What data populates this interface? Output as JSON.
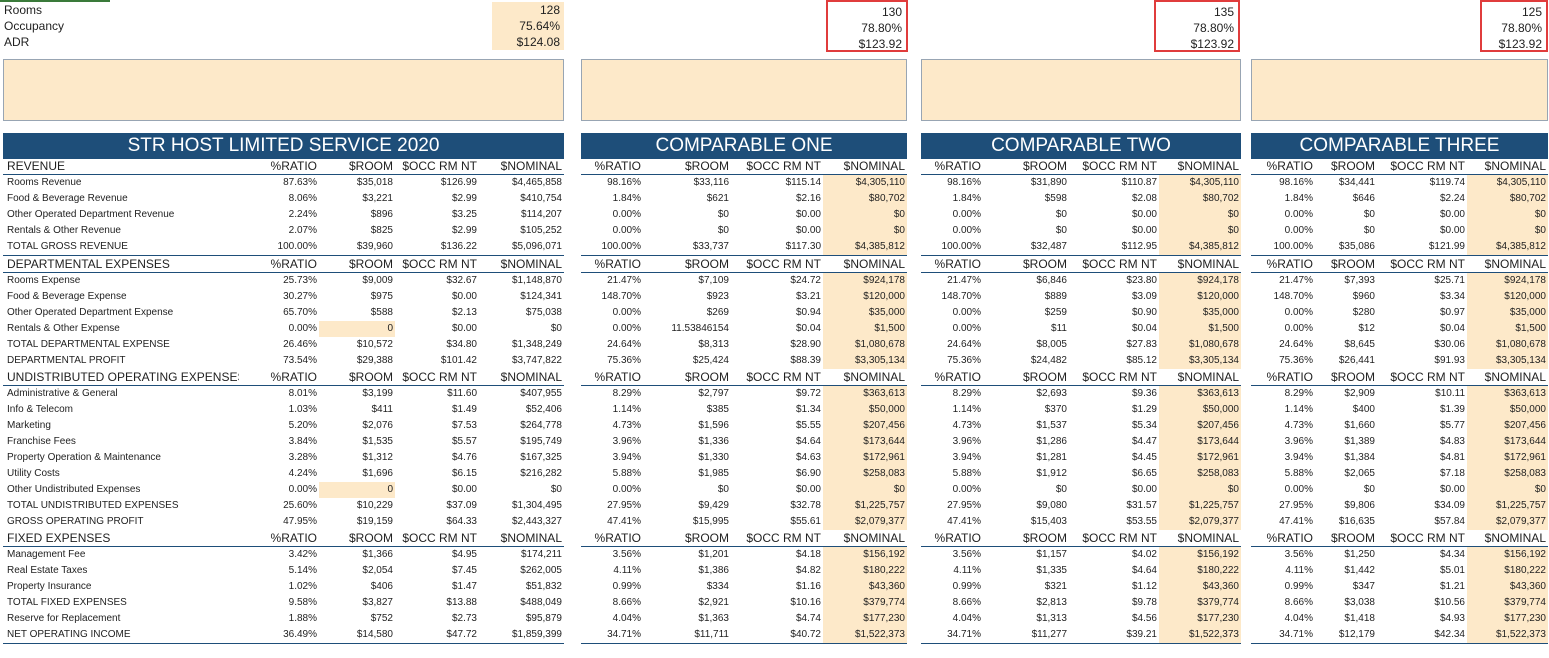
{
  "top_labels": [
    "Rooms",
    "Occupancy",
    "ADR"
  ],
  "top_panels": [
    {
      "rooms": "128",
      "occupancy": "75.64%",
      "adr": "$124.08"
    },
    {
      "rooms": "130",
      "occupancy": "78.80%",
      "adr": "$123.92"
    },
    {
      "rooms": "135",
      "occupancy": "78.80%",
      "adr": "$123.92"
    },
    {
      "rooms": "125",
      "occupancy": "78.80%",
      "adr": "$123.92"
    }
  ],
  "panel_titles": [
    "STR HOST LIMITED SERVICE 2020",
    "COMPARABLE ONE",
    "COMPARABLE TWO",
    "COMPARABLE THREE"
  ],
  "column_headers": [
    "%RATIO",
    "$ROOM",
    "$OCC RM NT",
    "$NOMINAL"
  ],
  "rows": [
    {
      "t": "sec",
      "l": "REVENUE"
    },
    {
      "t": "d",
      "l": "Rooms Revenue",
      "v": [
        [
          "87.63%",
          "$35,018",
          "$126.99",
          "$4,465,858"
        ],
        [
          "98.16%",
          "$33,116",
          "$115.14",
          "$4,305,110"
        ],
        [
          "98.16%",
          "$31,890",
          "$110.87",
          "$4,305,110"
        ],
        [
          "98.16%",
          "$34,441",
          "$119.74",
          "$4,305,110"
        ]
      ]
    },
    {
      "t": "d",
      "l": "Food & Beverage Revenue",
      "v": [
        [
          "8.06%",
          "$3,221",
          "$2.99",
          "$410,754"
        ],
        [
          "1.84%",
          "$621",
          "$2.16",
          "$80,702"
        ],
        [
          "1.84%",
          "$598",
          "$2.08",
          "$80,702"
        ],
        [
          "1.84%",
          "$646",
          "$2.24",
          "$80,702"
        ]
      ]
    },
    {
      "t": "d",
      "l": "Other Operated Department Revenue",
      "v": [
        [
          "2.24%",
          "$896",
          "$3.25",
          "$114,207"
        ],
        [
          "0.00%",
          "$0",
          "$0.00",
          "$0"
        ],
        [
          "0.00%",
          "$0",
          "$0.00",
          "$0"
        ],
        [
          "0.00%",
          "$0",
          "$0.00",
          "$0"
        ]
      ]
    },
    {
      "t": "d",
      "l": "Rentals & Other Revenue",
      "v": [
        [
          "2.07%",
          "$825",
          "$2.99",
          "$105,252"
        ],
        [
          "0.00%",
          "$0",
          "$0.00",
          "$0"
        ],
        [
          "0.00%",
          "$0",
          "$0.00",
          "$0"
        ],
        [
          "0.00%",
          "$0",
          "$0.00",
          "$0"
        ]
      ]
    },
    {
      "t": "tot",
      "l": "TOTAL GROSS REVENUE",
      "v": [
        [
          "100.00%",
          "$39,960",
          "$136.22",
          "$5,096,071"
        ],
        [
          "100.00%",
          "$33,737",
          "$117.30",
          "$4,385,812"
        ],
        [
          "100.00%",
          "$32,487",
          "$112.95",
          "$4,385,812"
        ],
        [
          "100.00%",
          "$35,086",
          "$121.99",
          "$4,385,812"
        ]
      ]
    },
    {
      "t": "sec",
      "l": "DEPARTMENTAL EXPENSES"
    },
    {
      "t": "d",
      "l": "Rooms Expense",
      "v": [
        [
          "25.73%",
          "$9,009",
          "$32.67",
          "$1,148,870"
        ],
        [
          "21.47%",
          "$7,109",
          "$24.72",
          "$924,178"
        ],
        [
          "21.47%",
          "$6,846",
          "$23.80",
          "$924,178"
        ],
        [
          "21.47%",
          "$7,393",
          "$25.71",
          "$924,178"
        ]
      ]
    },
    {
      "t": "d",
      "l": "Food & Beverage Expense",
      "v": [
        [
          "30.27%",
          "$975",
          "$0.00",
          "$124,341"
        ],
        [
          "148.70%",
          "$923",
          "$3.21",
          "$120,000"
        ],
        [
          "148.70%",
          "$889",
          "$3.09",
          "$120,000"
        ],
        [
          "148.70%",
          "$960",
          "$3.34",
          "$120,000"
        ]
      ]
    },
    {
      "t": "d",
      "l": "Other Operated Department Expense",
      "v": [
        [
          "65.70%",
          "$588",
          "$2.13",
          "$75,038"
        ],
        [
          "0.00%",
          "$269",
          "$0.94",
          "$35,000"
        ],
        [
          "0.00%",
          "$259",
          "$0.90",
          "$35,000"
        ],
        [
          "0.00%",
          "$280",
          "$0.97",
          "$35,000"
        ]
      ]
    },
    {
      "t": "d",
      "l": "Rentals & Other Expense",
      "hl0": true,
      "v": [
        [
          "0.00%",
          "0",
          "$0.00",
          "$0"
        ],
        [
          "0.00%",
          "11.53846154",
          "$0.04",
          "$1,500"
        ],
        [
          "0.00%",
          "$11",
          "$0.04",
          "$1,500"
        ],
        [
          "0.00%",
          "$12",
          "$0.04",
          "$1,500"
        ]
      ]
    },
    {
      "t": "d",
      "l": "TOTAL DEPARTMENTAL EXPENSE",
      "v": [
        [
          "26.46%",
          "$10,572",
          "$34.80",
          "$1,348,249"
        ],
        [
          "24.64%",
          "$8,313",
          "$28.90",
          "$1,080,678"
        ],
        [
          "24.64%",
          "$8,005",
          "$27.83",
          "$1,080,678"
        ],
        [
          "24.64%",
          "$8,645",
          "$30.06",
          "$1,080,678"
        ]
      ]
    },
    {
      "t": "d",
      "l": "DEPARTMENTAL PROFIT",
      "v": [
        [
          "73.54%",
          "$29,388",
          "$101.42",
          "$3,747,822"
        ],
        [
          "75.36%",
          "$25,424",
          "$88.39",
          "$3,305,134"
        ],
        [
          "75.36%",
          "$24,482",
          "$85.12",
          "$3,305,134"
        ],
        [
          "75.36%",
          "$26,441",
          "$91.93",
          "$3,305,134"
        ]
      ]
    },
    {
      "t": "sec",
      "l": "UNDISTRIBUTED OPERATING EXPENSES"
    },
    {
      "t": "d",
      "l": "Administrative & General",
      "v": [
        [
          "8.01%",
          "$3,199",
          "$11.60",
          "$407,955"
        ],
        [
          "8.29%",
          "$2,797",
          "$9.72",
          "$363,613"
        ],
        [
          "8.29%",
          "$2,693",
          "$9.36",
          "$363,613"
        ],
        [
          "8.29%",
          "$2,909",
          "$10.11",
          "$363,613"
        ]
      ]
    },
    {
      "t": "d",
      "l": "Info & Telecom",
      "v": [
        [
          "1.03%",
          "$411",
          "$1.49",
          "$52,406"
        ],
        [
          "1.14%",
          "$385",
          "$1.34",
          "$50,000"
        ],
        [
          "1.14%",
          "$370",
          "$1.29",
          "$50,000"
        ],
        [
          "1.14%",
          "$400",
          "$1.39",
          "$50,000"
        ]
      ]
    },
    {
      "t": "d",
      "l": "Marketing",
      "v": [
        [
          "5.20%",
          "$2,076",
          "$7.53",
          "$264,778"
        ],
        [
          "4.73%",
          "$1,596",
          "$5.55",
          "$207,456"
        ],
        [
          "4.73%",
          "$1,537",
          "$5.34",
          "$207,456"
        ],
        [
          "4.73%",
          "$1,660",
          "$5.77",
          "$207,456"
        ]
      ]
    },
    {
      "t": "d",
      "l": "Franchise Fees",
      "v": [
        [
          "3.84%",
          "$1,535",
          "$5.57",
          "$195,749"
        ],
        [
          "3.96%",
          "$1,336",
          "$4.64",
          "$173,644"
        ],
        [
          "3.96%",
          "$1,286",
          "$4.47",
          "$173,644"
        ],
        [
          "3.96%",
          "$1,389",
          "$4.83",
          "$173,644"
        ]
      ]
    },
    {
      "t": "d",
      "l": "Property Operation & Maintenance",
      "v": [
        [
          "3.28%",
          "$1,312",
          "$4.76",
          "$167,325"
        ],
        [
          "3.94%",
          "$1,330",
          "$4.63",
          "$172,961"
        ],
        [
          "3.94%",
          "$1,281",
          "$4.45",
          "$172,961"
        ],
        [
          "3.94%",
          "$1,384",
          "$4.81",
          "$172,961"
        ]
      ]
    },
    {
      "t": "d",
      "l": "Utility Costs",
      "v": [
        [
          "4.24%",
          "$1,696",
          "$6.15",
          "$216,282"
        ],
        [
          "5.88%",
          "$1,985",
          "$6.90",
          "$258,083"
        ],
        [
          "5.88%",
          "$1,912",
          "$6.65",
          "$258,083"
        ],
        [
          "5.88%",
          "$2,065",
          "$7.18",
          "$258,083"
        ]
      ]
    },
    {
      "t": "d",
      "l": "Other Undistributed Expenses",
      "hl0": true,
      "v": [
        [
          "0.00%",
          "0",
          "$0.00",
          "$0"
        ],
        [
          "0.00%",
          "$0",
          "$0.00",
          "$0"
        ],
        [
          "0.00%",
          "$0",
          "$0.00",
          "$0"
        ],
        [
          "0.00%",
          "$0",
          "$0.00",
          "$0"
        ]
      ]
    },
    {
      "t": "d",
      "l": "TOTAL UNDISTRIBUTED EXPENSES",
      "v": [
        [
          "25.60%",
          "$10,229",
          "$37.09",
          "$1,304,495"
        ],
        [
          "27.95%",
          "$9,429",
          "$32.78",
          "$1,225,757"
        ],
        [
          "27.95%",
          "$9,080",
          "$31.57",
          "$1,225,757"
        ],
        [
          "27.95%",
          "$9,806",
          "$34.09",
          "$1,225,757"
        ]
      ]
    },
    {
      "t": "d",
      "l": "GROSS OPERATING PROFIT",
      "v": [
        [
          "47.95%",
          "$19,159",
          "$64.33",
          "$2,443,327"
        ],
        [
          "47.41%",
          "$15,995",
          "$55.61",
          "$2,079,377"
        ],
        [
          "47.41%",
          "$15,403",
          "$53.55",
          "$2,079,377"
        ],
        [
          "47.41%",
          "$16,635",
          "$57.84",
          "$2,079,377"
        ]
      ]
    },
    {
      "t": "sec",
      "l": "FIXED EXPENSES"
    },
    {
      "t": "d",
      "l": "Management Fee",
      "v": [
        [
          "3.42%",
          "$1,366",
          "$4.95",
          "$174,211"
        ],
        [
          "3.56%",
          "$1,201",
          "$4.18",
          "$156,192"
        ],
        [
          "3.56%",
          "$1,157",
          "$4.02",
          "$156,192"
        ],
        [
          "3.56%",
          "$1,250",
          "$4.34",
          "$156,192"
        ]
      ]
    },
    {
      "t": "d",
      "l": "Real Estate Taxes",
      "v": [
        [
          "5.14%",
          "$2,054",
          "$7.45",
          "$262,005"
        ],
        [
          "4.11%",
          "$1,386",
          "$4.82",
          "$180,222"
        ],
        [
          "4.11%",
          "$1,335",
          "$4.64",
          "$180,222"
        ],
        [
          "4.11%",
          "$1,442",
          "$5.01",
          "$180,222"
        ]
      ]
    },
    {
      "t": "d",
      "l": "Property Insurance",
      "v": [
        [
          "1.02%",
          "$406",
          "$1.47",
          "$51,832"
        ],
        [
          "0.99%",
          "$334",
          "$1.16",
          "$43,360"
        ],
        [
          "0.99%",
          "$321",
          "$1.12",
          "$43,360"
        ],
        [
          "0.99%",
          "$347",
          "$1.21",
          "$43,360"
        ]
      ]
    },
    {
      "t": "d",
      "l": "TOTAL FIXED EXPENSES",
      "v": [
        [
          "9.58%",
          "$3,827",
          "$13.88",
          "$488,049"
        ],
        [
          "8.66%",
          "$2,921",
          "$10.16",
          "$379,774"
        ],
        [
          "8.66%",
          "$2,813",
          "$9.78",
          "$379,774"
        ],
        [
          "8.66%",
          "$3,038",
          "$10.56",
          "$379,774"
        ]
      ]
    },
    {
      "t": "d",
      "l": "Reserve for Replacement",
      "v": [
        [
          "1.88%",
          "$752",
          "$2.73",
          "$95,879"
        ],
        [
          "4.04%",
          "$1,363",
          "$4.74",
          "$177,230"
        ],
        [
          "4.04%",
          "$1,313",
          "$4.56",
          "$177,230"
        ],
        [
          "4.04%",
          "$1,418",
          "$4.93",
          "$177,230"
        ]
      ]
    },
    {
      "t": "tot",
      "l": "NET OPERATING INCOME",
      "v": [
        [
          "36.49%",
          "$14,580",
          "$47.72",
          "$1,859,399"
        ],
        [
          "34.71%",
          "$11,711",
          "$40.72",
          "$1,522,373"
        ],
        [
          "34.71%",
          "$11,277",
          "$39.21",
          "$1,522,373"
        ],
        [
          "34.71%",
          "$12,179",
          "$42.34",
          "$1,522,373"
        ]
      ]
    }
  ]
}
